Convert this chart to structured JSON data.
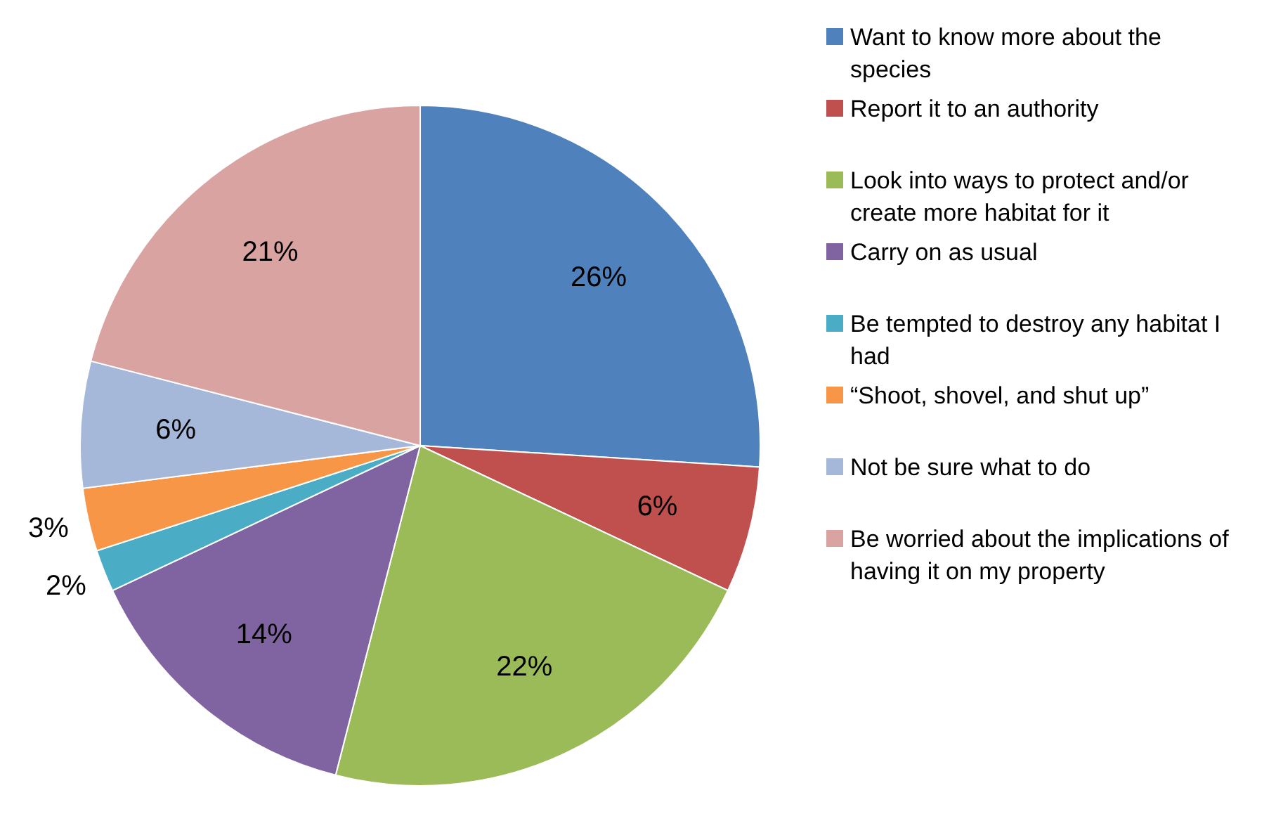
{
  "chart_data": {
    "type": "pie",
    "categories": [
      "Want to know more about the species",
      "Report it to an authority",
      "Look into ways to protect and/or create more habitat for it",
      "Carry on as usual",
      "Be tempted to destroy any habitat I had",
      "“Shoot, shovel, and shut up”",
      "Not be sure what to do",
      "Be worried about the implications of having it on my property"
    ],
    "values": [
      26,
      6,
      22,
      14,
      2,
      3,
      6,
      21
    ],
    "colors": [
      "#4f81bd",
      "#c0504d",
      "#9bbb59",
      "#8064a2",
      "#4bacc6",
      "#f79646",
      "#a5b8d9",
      "#d9a3a2"
    ],
    "value_labels": [
      "26%",
      "6%",
      "22%",
      "14%",
      "2%",
      "3%",
      "6%",
      "21%"
    ],
    "legend": "right"
  }
}
